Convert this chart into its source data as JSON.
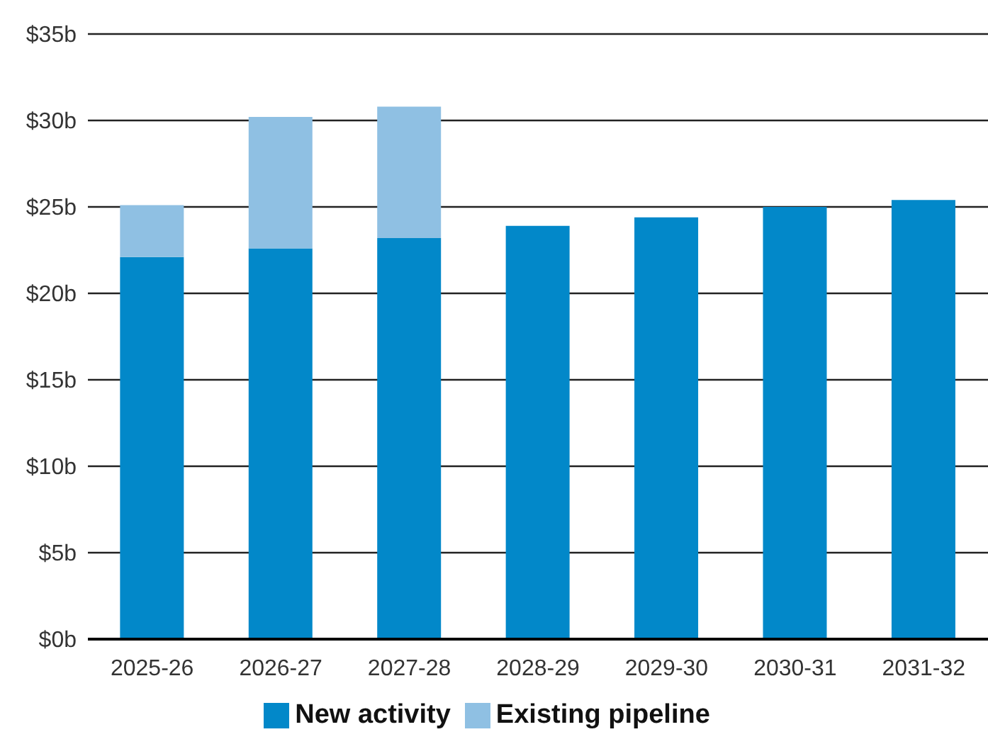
{
  "chart_data": {
    "type": "bar",
    "stacked": true,
    "categories": [
      "2025-26",
      "2026-27",
      "2027-28",
      "2028-29",
      "2029-30",
      "2030-31",
      "2031-32"
    ],
    "series": [
      {
        "name": "New activity",
        "color": "#0288c9",
        "values": [
          22.1,
          22.6,
          23.2,
          23.9,
          24.4,
          25.0,
          25.4
        ]
      },
      {
        "name": "Existing pipeline",
        "color": "#8fc0e3",
        "values": [
          3.0,
          7.6,
          7.6,
          null,
          null,
          null,
          null
        ]
      }
    ],
    "ylim": [
      0,
      35
    ],
    "yticks": [
      {
        "value": 0,
        "label": "$0b"
      },
      {
        "value": 5,
        "label": "$5b"
      },
      {
        "value": 10,
        "label": "$10b"
      },
      {
        "value": 15,
        "label": "$15b"
      },
      {
        "value": 20,
        "label": "$20b"
      },
      {
        "value": 25,
        "label": "$25b"
      },
      {
        "value": 30,
        "label": "$30b"
      },
      {
        "value": 35,
        "label": "$35b"
      }
    ],
    "grid": "y",
    "legend": "bottom"
  }
}
